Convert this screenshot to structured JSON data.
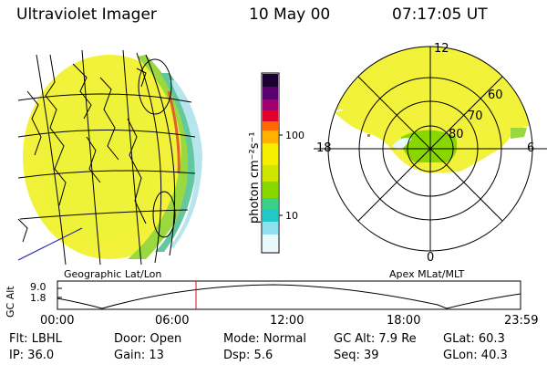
{
  "header": {
    "instrument": "Ultraviolet Imager",
    "date": "10 May 00",
    "time": "07:17:05 UT"
  },
  "colorbar": {
    "unit_label": "photon cm⁻²s⁻¹",
    "ticks": [
      "100",
      "10"
    ],
    "colors": [
      "#1a0033",
      "#5a006e",
      "#a00070",
      "#e3002a",
      "#ff6a00",
      "#ffb000",
      "#f4ee00",
      "#cfe600",
      "#88d800",
      "#3ad08a",
      "#22c8c8",
      "#8fe0f0",
      "#e8f8fb"
    ]
  },
  "polar_plot": {
    "mlt_labels": {
      "top": "12",
      "left": "18",
      "right": "6",
      "bottom": "0"
    },
    "mlat_labels": [
      "60",
      "70",
      "80"
    ]
  },
  "labels": {
    "geo_caption": "Geographic Lat/Lon",
    "apex_caption": "Apex MLat/MLT"
  },
  "timeline": {
    "ylabel": "GC Alt",
    "y_ticks": [
      "9.0",
      "1.8"
    ],
    "x_ticks": [
      "00:00",
      "06:00",
      "12:00",
      "18:00",
      "23:59"
    ],
    "marker_time": "07:17"
  },
  "info": {
    "flt": "Flt: LBHL",
    "ip": "IP: 36.0",
    "door": "Door: Open",
    "gain": "Gain: 13",
    "mode": "Mode: Normal",
    "dsp": "Dsp:    5.6",
    "gcalt": "GC Alt: 7.9 Re",
    "seq": "Seq: 39",
    "glat": "GLat:  60.3",
    "glon": "GLon:  40.3"
  }
}
